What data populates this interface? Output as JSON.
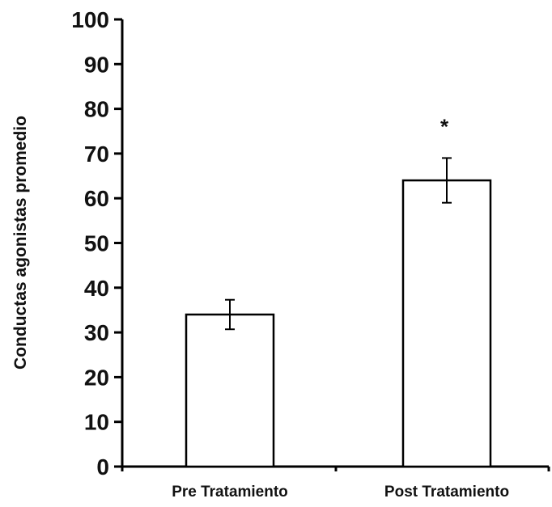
{
  "chart_data": {
    "type": "bar",
    "title": "",
    "xlabel": "",
    "ylabel": "Conductas agonistas promedio",
    "categories": [
      "Pre Tratamiento",
      "Post Tratamiento"
    ],
    "values": [
      34,
      64
    ],
    "error_bars": [
      3.3,
      5
    ],
    "annotations": [
      "",
      "*"
    ],
    "ylim": [
      0,
      100
    ],
    "yticks": [
      "0",
      "10",
      "20",
      "30",
      "40",
      "50",
      "60",
      "70",
      "80",
      "90",
      "100"
    ],
    "grid": false,
    "bar_fill": "#ffffff",
    "bar_stroke": "#000000"
  }
}
